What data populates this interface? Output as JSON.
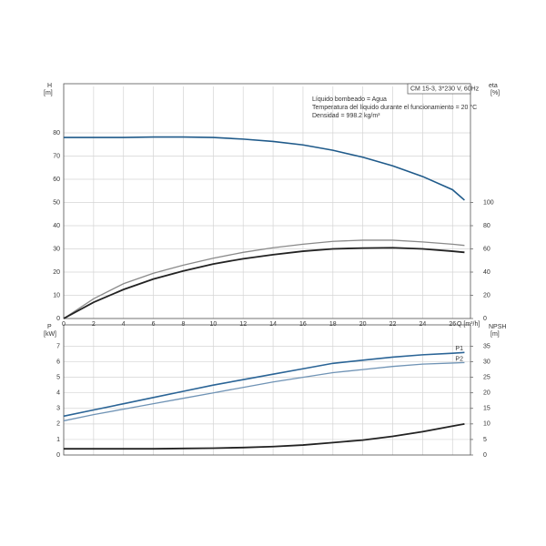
{
  "chart_data": [
    {
      "type": "line",
      "ylabel": "H",
      "yunit": "[m]",
      "y2label": "eta",
      "y2unit": "[%]",
      "xlabel": "Q [m³/h]",
      "annotation": "CM 15-3, 3*230 V, 60Hz",
      "notes": [
        "Líquido bombeado = Agua",
        "Temperatura del líquido durante el funcionamiento = 20 °C",
        "Densidad = 998.2 kg/m³"
      ],
      "x": [
        0,
        2,
        4,
        6,
        8,
        10,
        12,
        14,
        16,
        18,
        20,
        22,
        24,
        26,
        26.8
      ],
      "series": [
        {
          "color": "#1f5a8a",
          "width": 1.6,
          "values": [
            78,
            78,
            78,
            78.2,
            78.2,
            78,
            77.3,
            76.3,
            74.8,
            72.5,
            69.5,
            65.8,
            61.2,
            55.5,
            51
          ]
        },
        {
          "color": "#8a8a8a",
          "width": 1.3,
          "axis": "y2",
          "values": [
            0,
            17,
            30,
            39,
            46,
            52,
            57,
            61,
            64,
            66.5,
            67.5,
            67.5,
            66,
            64,
            63
          ]
        },
        {
          "color": "#222222",
          "width": 1.8,
          "axis": "y2",
          "values": [
            0,
            14,
            25,
            34,
            41,
            47,
            51.5,
            55,
            58,
            60,
            60.7,
            61,
            60,
            58,
            57
          ]
        }
      ],
      "xlim": [
        0,
        27.2
      ],
      "xticks": [
        0,
        2,
        4,
        6,
        8,
        10,
        12,
        14,
        16,
        18,
        20,
        22,
        24,
        26
      ],
      "xtick_labels": true,
      "ylim": [
        0,
        100
      ],
      "yticks": [
        0,
        10,
        20,
        30,
        40,
        50,
        60,
        70,
        80
      ],
      "y2lim": [
        0,
        200
      ],
      "y2ticks": [
        0,
        20,
        40,
        60,
        80,
        100
      ],
      "grid": true
    },
    {
      "type": "line",
      "ylabel": "P",
      "yunit": "[kW]",
      "y2label": "NPSH",
      "y2unit": "[m]",
      "x": [
        0,
        2,
        4,
        6,
        8,
        10,
        12,
        14,
        16,
        18,
        20,
        22,
        24,
        26,
        26.8
      ],
      "series": [
        {
          "name": "P1",
          "color": "#2a6496",
          "width": 1.6,
          "values": [
            2.5,
            2.9,
            3.3,
            3.7,
            4.1,
            4.5,
            4.85,
            5.2,
            5.55,
            5.9,
            6.1,
            6.3,
            6.45,
            6.55,
            6.6
          ]
        },
        {
          "name": "P2",
          "color": "#6f93b5",
          "width": 1.3,
          "values": [
            2.2,
            2.6,
            2.95,
            3.3,
            3.65,
            4.0,
            4.35,
            4.7,
            5.0,
            5.3,
            5.5,
            5.7,
            5.85,
            5.92,
            5.95
          ]
        },
        {
          "color": "#222222",
          "width": 1.8,
          "axis": "y2",
          "values": [
            2,
            2,
            2,
            2,
            2.1,
            2.2,
            2.4,
            2.7,
            3.2,
            4,
            4.8,
            6,
            7.5,
            9.3,
            10
          ]
        }
      ],
      "xlim": [
        0,
        27.2
      ],
      "xticks": [
        0,
        2,
        4,
        6,
        8,
        10,
        12,
        14,
        16,
        18,
        20,
        22,
        24,
        26
      ],
      "xtick_labels": false,
      "ylim": [
        0,
        8.2
      ],
      "yticks": [
        0,
        1,
        2,
        3,
        4,
        5,
        6,
        7
      ],
      "y2lim": [
        0,
        41
      ],
      "y2ticks": [
        0,
        5,
        10,
        15,
        20,
        25,
        30,
        35
      ],
      "grid": true
    }
  ]
}
